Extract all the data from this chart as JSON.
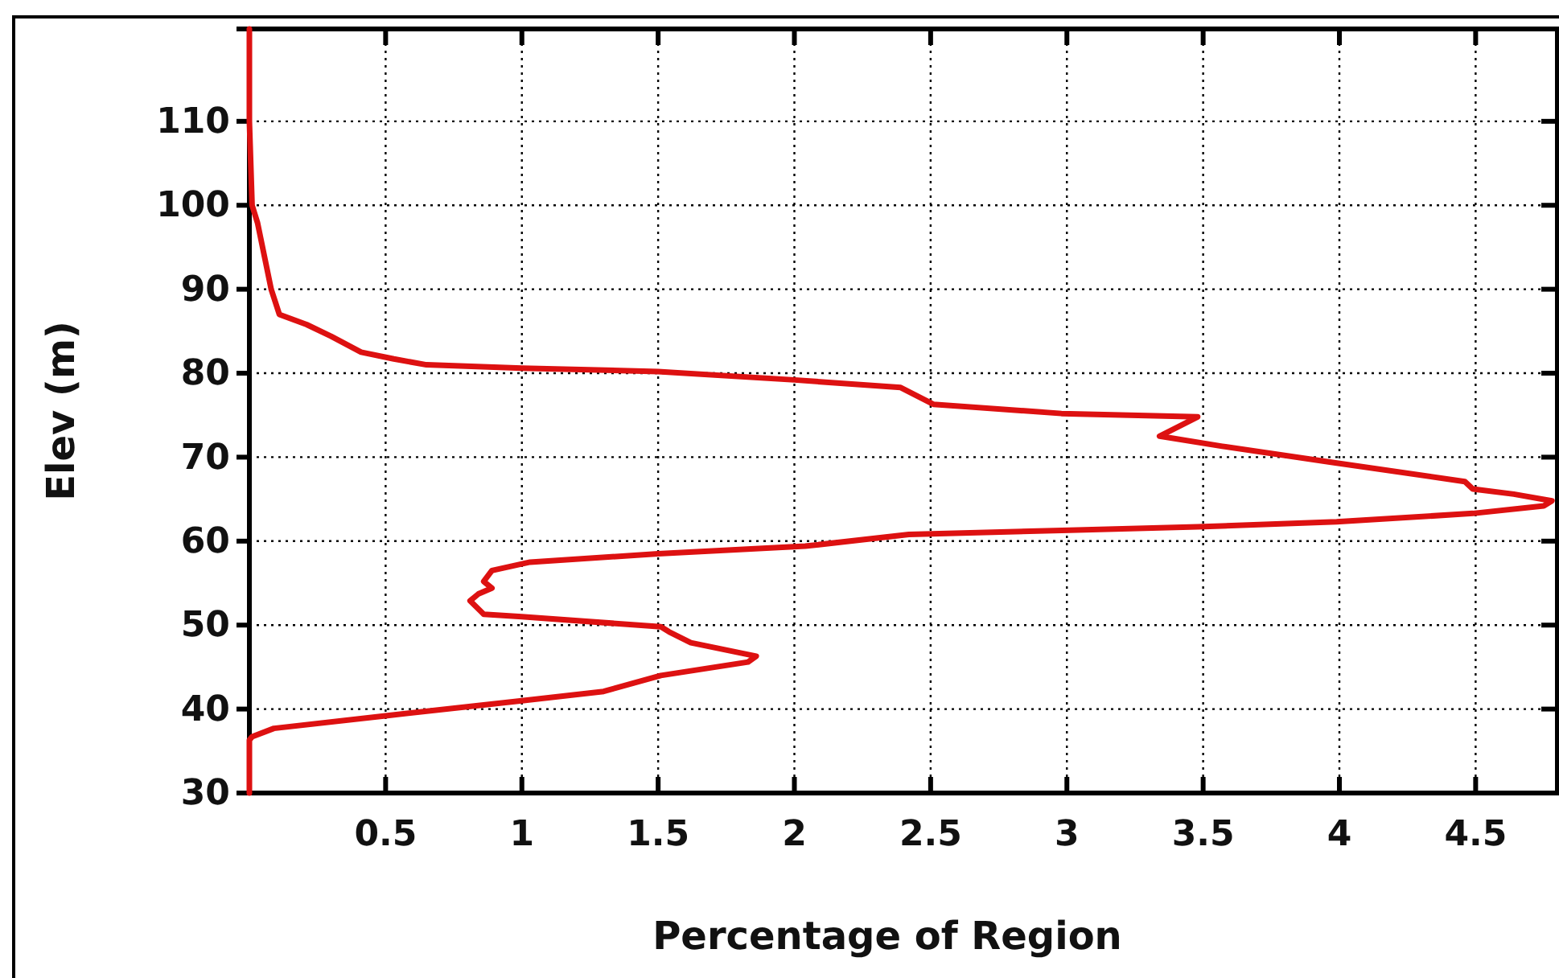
{
  "chart_data": {
    "type": "line",
    "xlabel": "Percentage of Region",
    "ylabel": "Elev (m)",
    "xlim": [
      0,
      4.8
    ],
    "ylim": [
      30,
      121
    ],
    "xticks": [
      0.5,
      1,
      1.5,
      2,
      2.5,
      3,
      3.5,
      4,
      4.5
    ],
    "yticks": [
      30,
      40,
      50,
      60,
      70,
      80,
      90,
      100,
      110
    ],
    "grid": true,
    "line_style": "solid",
    "marker": "none",
    "series": [
      {
        "color": "#dd1111",
        "x": [
          0,
          0,
          0.01,
          0.03,
          0.08,
          0.11,
          0.21,
          0.3,
          0.41,
          0.53,
          0.65,
          1.0,
          1.5,
          2.0,
          2.39,
          2.51,
          2.98,
          3.48,
          3.34,
          3.57,
          3.97,
          4.46,
          4.49,
          4.64,
          4.78,
          4.75,
          4.49,
          3.99,
          3.48,
          3.01,
          2.42,
          2.04,
          1.5,
          1.03,
          0.89,
          0.86,
          0.89,
          0.84,
          0.81,
          0.86,
          1.0,
          1.51,
          1.54,
          1.62,
          1.86,
          1.83,
          1.51,
          1.3,
          1.0,
          0.5,
          0.09,
          0.01,
          0,
          0
        ],
        "values": [
          121,
          110,
          100,
          97.9,
          90,
          87,
          85.8,
          84.4,
          82.5,
          81.7,
          81,
          80.6,
          80.2,
          79.2,
          78.3,
          76.3,
          75.2,
          74.8,
          72.5,
          71.3,
          69.4,
          67.1,
          66.2,
          65.6,
          64.8,
          64.2,
          63.3,
          62.3,
          61.7,
          61.3,
          60.8,
          59.4,
          58.5,
          57.5,
          56.5,
          55.2,
          54.4,
          53.7,
          52.9,
          51.3,
          51,
          49.8,
          49.2,
          47.9,
          46.3,
          45.6,
          44,
          42.1,
          41,
          39.2,
          37.7,
          36.7,
          36.3,
          30
        ]
      }
    ]
  }
}
